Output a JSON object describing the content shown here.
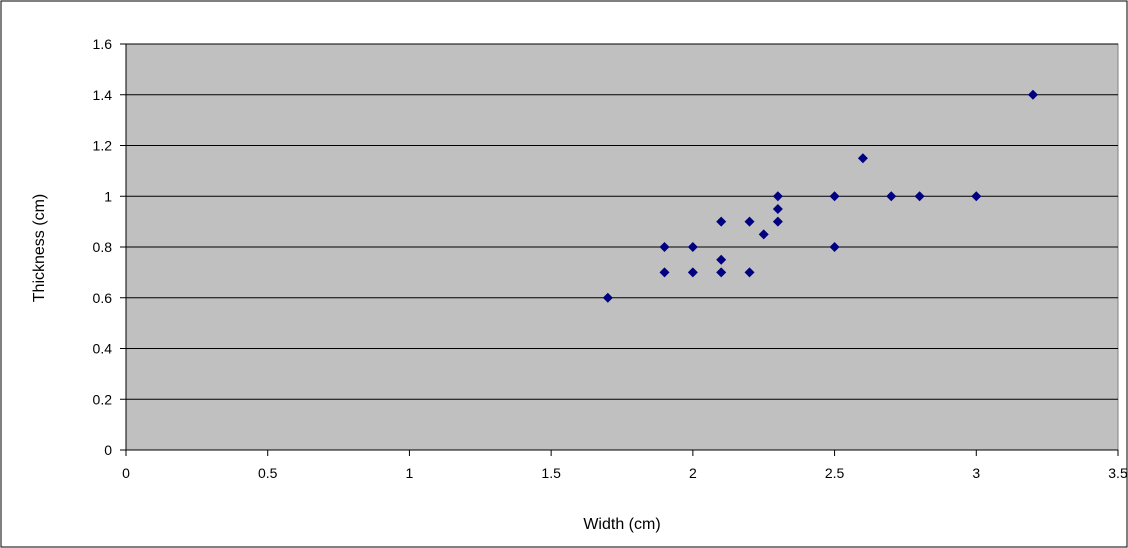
{
  "chart_data": {
    "type": "scatter",
    "title": "",
    "xlabel": "Width (cm)",
    "ylabel": "Thickness (cm)",
    "xlim": [
      0,
      3.5
    ],
    "ylim": [
      0,
      1.6
    ],
    "x_ticks": [
      "0",
      "0.5",
      "1",
      "1.5",
      "2",
      "2.5",
      "3",
      "3.5"
    ],
    "y_ticks": [
      "0",
      "0.2",
      "0.4",
      "0.6",
      "0.8",
      "1",
      "1.2",
      "1.4",
      "1.6"
    ],
    "grid": "horizontal",
    "legend": "none",
    "colors": {
      "plot_background": "#c0c0c0",
      "marker": "#000080",
      "gridline": "#000000",
      "chart_border": "#000000"
    },
    "marker_shape": "diamond",
    "points": [
      {
        "x": 1.7,
        "y": 0.6
      },
      {
        "x": 1.9,
        "y": 0.8
      },
      {
        "x": 1.9,
        "y": 0.7
      },
      {
        "x": 2.0,
        "y": 0.8
      },
      {
        "x": 2.0,
        "y": 0.7
      },
      {
        "x": 2.1,
        "y": 0.9
      },
      {
        "x": 2.1,
        "y": 0.75
      },
      {
        "x": 2.1,
        "y": 0.7
      },
      {
        "x": 2.2,
        "y": 0.9
      },
      {
        "x": 2.2,
        "y": 0.7
      },
      {
        "x": 2.25,
        "y": 0.85
      },
      {
        "x": 2.3,
        "y": 1.0
      },
      {
        "x": 2.3,
        "y": 0.95
      },
      {
        "x": 2.3,
        "y": 0.9
      },
      {
        "x": 2.5,
        "y": 1.0
      },
      {
        "x": 2.5,
        "y": 0.8
      },
      {
        "x": 2.6,
        "y": 1.15
      },
      {
        "x": 2.7,
        "y": 1.0
      },
      {
        "x": 2.8,
        "y": 1.0
      },
      {
        "x": 3.0,
        "y": 1.0
      },
      {
        "x": 3.2,
        "y": 1.4
      }
    ]
  }
}
